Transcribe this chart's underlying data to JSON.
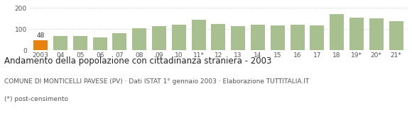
{
  "categories": [
    "2003",
    "04",
    "05",
    "06",
    "07",
    "08",
    "09",
    "10",
    "11*",
    "12",
    "13",
    "14",
    "15",
    "16",
    "17",
    "18",
    "19*",
    "20*",
    "21*"
  ],
  "values": [
    48,
    68,
    67,
    62,
    82,
    105,
    115,
    122,
    143,
    125,
    113,
    120,
    118,
    120,
    118,
    170,
    153,
    152,
    138
  ],
  "bar_colors": [
    "#e8820c",
    "#a8c090",
    "#a8c090",
    "#a8c090",
    "#a8c090",
    "#a8c090",
    "#a8c090",
    "#a8c090",
    "#a8c090",
    "#a8c090",
    "#a8c090",
    "#a8c090",
    "#a8c090",
    "#a8c090",
    "#a8c090",
    "#a8c090",
    "#a8c090",
    "#a8c090",
    "#a8c090"
  ],
  "label_2003": "48",
  "ylim": [
    0,
    220
  ],
  "yticks": [
    0,
    100,
    200
  ],
  "title": "Andamento della popolazione con cittadinanza straniera - 2003",
  "subtitle": "COMUNE DI MONTICELLI PAVESE (PV) · Dati ISTAT 1° gennaio 2003 · Elaborazione TUTTITALIA.IT",
  "footnote": "(*) post-censimento",
  "grid_color": "#cccccc",
  "background_color": "#ffffff",
  "title_fontsize": 8.5,
  "subtitle_fontsize": 6.5,
  "footnote_fontsize": 6.5,
  "tick_fontsize": 6.5
}
